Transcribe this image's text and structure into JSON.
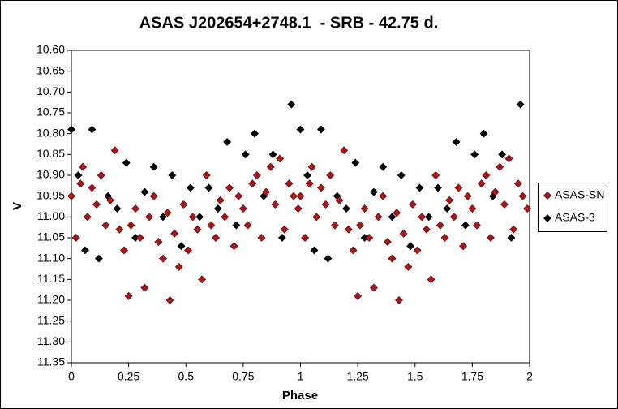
{
  "chart_data": {
    "type": "scatter",
    "title": "ASAS J202654+2748.1  - SRB - 42.75 d.",
    "xlabel": "Phase",
    "ylabel": "V",
    "xlim": [
      0,
      2
    ],
    "xticks": [
      0,
      0.25,
      0.5,
      0.75,
      1,
      1.25,
      1.5,
      1.75,
      2
    ],
    "ylim": [
      10.6,
      11.35
    ],
    "y_inverted": true,
    "yticks": [
      {
        "value": 10.6,
        "label": "10.60"
      },
      {
        "value": 10.65,
        "label": "10.65"
      },
      {
        "value": 10.7,
        "label": "10.70"
      },
      {
        "value": 10.75,
        "label": "10.75"
      },
      {
        "value": 10.8,
        "label": "10.80"
      },
      {
        "value": 10.85,
        "label": "10.85"
      },
      {
        "value": 10.9,
        "label": "10.90"
      },
      {
        "value": 10.95,
        "label": "10.95"
      },
      {
        "value": 11.0,
        "label": "11.00"
      },
      {
        "value": 11.05,
        "label": "11.05"
      },
      {
        "value": 11.1,
        "label": "11.10"
      },
      {
        "value": 11.15,
        "label": "11.15"
      },
      {
        "value": 11.2,
        "label": "11.20"
      },
      {
        "value": 11.25,
        "label": "11.25"
      },
      {
        "value": 11.3,
        "label": "11.30"
      },
      {
        "value": 11.35,
        "label": "11.35"
      }
    ],
    "legend": "right",
    "series": [
      {
        "name": "ASAS-SN",
        "color": "#b01414",
        "x": [
          0.0,
          0.02,
          0.04,
          0.05,
          0.07,
          0.09,
          0.11,
          0.13,
          0.15,
          0.17,
          0.19,
          0.21,
          0.23,
          0.25,
          0.26,
          0.28,
          0.3,
          0.32,
          0.34,
          0.36,
          0.38,
          0.4,
          0.42,
          0.43,
          0.45,
          0.47,
          0.49,
          0.51,
          0.53,
          0.55,
          0.57,
          0.59,
          0.61,
          0.63,
          0.65,
          0.67,
          0.69,
          0.71,
          0.73,
          0.75,
          0.77,
          0.79,
          0.81,
          0.83,
          0.85,
          0.87,
          0.89,
          0.91,
          0.93,
          0.95,
          0.97,
          0.99,
          1.0,
          1.02,
          1.04,
          1.05,
          1.07,
          1.09,
          1.11,
          1.13,
          1.15,
          1.17,
          1.19,
          1.21,
          1.23,
          1.25,
          1.26,
          1.28,
          1.3,
          1.32,
          1.34,
          1.36,
          1.38,
          1.4,
          1.42,
          1.43,
          1.45,
          1.47,
          1.49,
          1.51,
          1.53,
          1.55,
          1.57,
          1.59,
          1.61,
          1.63,
          1.65,
          1.67,
          1.69,
          1.71,
          1.73,
          1.75,
          1.77,
          1.79,
          1.81,
          1.83,
          1.85,
          1.87,
          1.89,
          1.91,
          1.93,
          1.95,
          1.97,
          1.99
        ],
        "values": [
          10.95,
          11.05,
          10.92,
          10.88,
          11.0,
          10.93,
          10.97,
          10.9,
          11.02,
          10.96,
          10.84,
          11.03,
          11.08,
          11.19,
          11.02,
          10.98,
          11.05,
          11.17,
          11.0,
          10.95,
          11.06,
          11.1,
          10.99,
          11.2,
          11.04,
          11.12,
          10.97,
          11.08,
          11.0,
          11.03,
          11.15,
          10.9,
          11.02,
          11.05,
          10.96,
          11.0,
          10.93,
          11.07,
          10.95,
          10.98,
          11.02,
          10.92,
          10.9,
          11.05,
          10.94,
          10.88,
          10.97,
          10.86,
          11.03,
          10.92,
          10.95,
          10.98,
          10.95,
          11.05,
          10.92,
          10.88,
          11.0,
          10.93,
          10.97,
          10.9,
          11.02,
          10.96,
          10.84,
          11.03,
          11.08,
          11.19,
          11.02,
          10.98,
          11.05,
          11.17,
          11.0,
          10.95,
          11.06,
          11.1,
          10.99,
          11.2,
          11.04,
          11.12,
          10.97,
          11.08,
          11.0,
          11.03,
          11.15,
          10.9,
          11.02,
          11.05,
          10.96,
          11.0,
          10.93,
          11.07,
          10.95,
          10.98,
          11.02,
          10.92,
          10.9,
          11.05,
          10.94,
          10.88,
          10.97,
          10.86,
          11.03,
          10.92,
          10.95,
          10.98
        ]
      },
      {
        "name": "ASAS-3",
        "color": "#000000",
        "x": [
          0.0,
          0.03,
          0.06,
          0.09,
          0.12,
          0.16,
          0.2,
          0.24,
          0.28,
          0.32,
          0.36,
          0.4,
          0.44,
          0.48,
          0.52,
          0.56,
          0.6,
          0.64,
          0.68,
          0.72,
          0.76,
          0.8,
          0.84,
          0.88,
          0.92,
          0.96,
          1.0,
          1.03,
          1.06,
          1.09,
          1.12,
          1.16,
          1.2,
          1.24,
          1.28,
          1.32,
          1.36,
          1.4,
          1.44,
          1.48,
          1.52,
          1.56,
          1.6,
          1.64,
          1.68,
          1.72,
          1.76,
          1.8,
          1.84,
          1.88,
          1.92,
          1.96
        ],
        "values": [
          10.79,
          10.9,
          11.08,
          10.79,
          11.1,
          10.95,
          10.98,
          10.87,
          11.05,
          10.94,
          10.88,
          11.0,
          10.9,
          11.07,
          10.93,
          11.0,
          10.93,
          10.98,
          10.82,
          11.02,
          10.85,
          10.8,
          10.95,
          10.85,
          11.05,
          10.73,
          10.79,
          10.9,
          11.08,
          10.79,
          11.1,
          10.95,
          10.98,
          10.87,
          11.05,
          10.94,
          10.88,
          11.0,
          10.9,
          11.07,
          10.93,
          11.0,
          10.93,
          10.98,
          10.82,
          11.02,
          10.85,
          10.8,
          10.95,
          10.85,
          11.05,
          10.73
        ]
      }
    ]
  }
}
